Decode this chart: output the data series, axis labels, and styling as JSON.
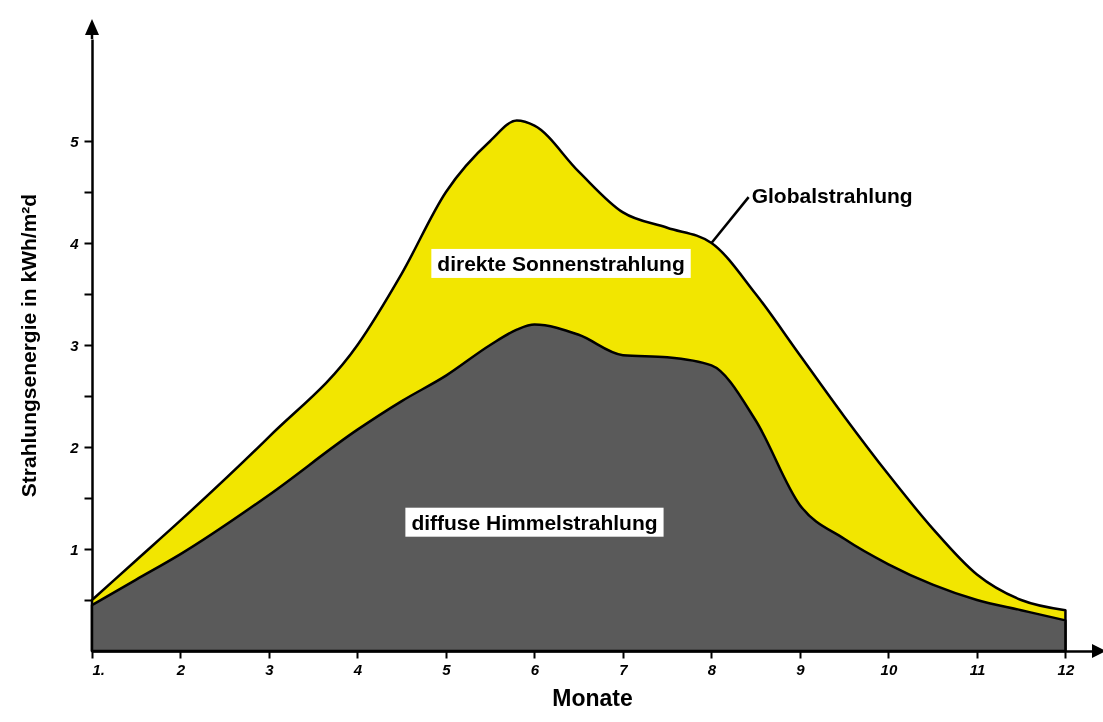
{
  "chart_data": {
    "type": "area",
    "xlabel": "Monate",
    "ylabel": "Strahlungsenergie in kWh/m²d",
    "x": [
      1,
      1.5,
      2,
      3,
      4,
      4.5,
      5,
      5.5,
      5.8,
      6,
      6.5,
      7,
      7.5,
      8,
      8.5,
      9,
      9.5,
      10,
      10.5,
      11,
      11.5,
      12
    ],
    "series": [
      {
        "name": "Globalstrahlung",
        "color": "#f2e600",
        "values": [
          0.5,
          0.89,
          1.28,
          2.1,
          3.0,
          3.7,
          4.5,
          5.0,
          5.2,
          5.15,
          4.7,
          4.3,
          4.15,
          4.0,
          3.5,
          2.9,
          2.3,
          1.73,
          1.2,
          0.75,
          0.5,
          0.4
        ]
      },
      {
        "name": "diffuse Himmelstrahlung",
        "color": "#5a5a5a",
        "values": [
          0.45,
          0.7,
          0.95,
          1.53,
          2.17,
          2.45,
          2.7,
          3.0,
          3.15,
          3.2,
          3.1,
          2.9,
          2.88,
          2.8,
          2.26,
          1.43,
          1.1,
          0.85,
          0.65,
          0.5,
          0.4,
          0.3
        ]
      }
    ],
    "xlim": [
      1,
      12.3
    ],
    "xticks": [
      {
        "value": 1,
        "label": "1."
      },
      2,
      3,
      4,
      5,
      6,
      7,
      8,
      9,
      10,
      11,
      12
    ],
    "ylim": [
      0,
      6
    ],
    "yticks": [
      {
        "value": 0.5,
        "label": null
      },
      1,
      {
        "value": 1.5,
        "label": null
      },
      2,
      {
        "value": 2.5,
        "label": null
      },
      3,
      {
        "value": 3.5,
        "label": null
      },
      4,
      {
        "value": 4.5,
        "label": null
      },
      5
    ],
    "grid": false,
    "annotations": [
      "direkte Sonnenstrahlung"
    ]
  }
}
